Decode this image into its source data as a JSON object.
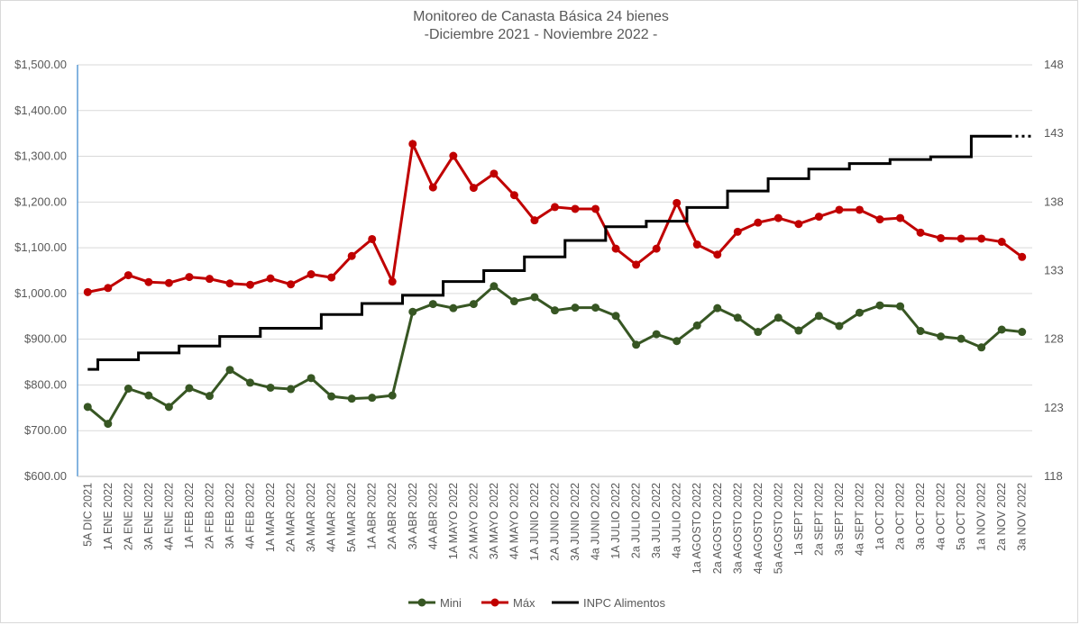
{
  "chart_data": {
    "type": "line",
    "title": "Monitoreo de Canasta Básica 24 bienes",
    "subtitle": "-Diciembre 2021 - Noviembre 2022 -",
    "ylim": [
      600,
      1500
    ],
    "y2lim": [
      118,
      148
    ],
    "y_ticks": [
      "$600.00",
      "$700.00",
      "$800.00",
      "$900.00",
      "$1,000.00",
      "$1,100.00",
      "$1,200.00",
      "$1,300.00",
      "$1,400.00",
      "$1,500.00"
    ],
    "y2_ticks": [
      "118",
      "123",
      "128",
      "133",
      "138",
      "143",
      "148"
    ],
    "grid": "horizontal",
    "legend_position": "bottom",
    "categories": [
      "5A DIC 2021",
      "1A ENE 2022",
      "2A ENE 2022",
      "3A ENE 2022",
      "4A ENE 2022",
      "1A FEB 2022",
      "2A FEB 2022",
      "3A FEB 2022",
      "4A FEB 2022",
      "1A MAR 2022",
      "2A MAR 2022",
      "3A MAR 2022",
      "4A MAR 2022",
      "5A MAR 2022",
      "1A ABR 2022",
      "2A ABR 2022",
      "3A ABR 2022",
      "4A ABR 2022",
      "1A MAYO 2022",
      "2A MAYO 2022",
      "3A MAYO 2022",
      "4A MAYO 2022",
      "1A JUNIO 2022",
      "2A JUNIO 2022",
      "3A JUNIO 2022",
      "4a JUNIO 2022",
      "1A JULIO 2022",
      "2a JULIO 2022",
      "3a JULIO 2022",
      "4a JULIO 2022",
      "1a AGOSTO 2022",
      "2a AGOSTO 2022",
      "3a AGOSTO 2022",
      "4a AGOSTO 2022",
      "5a AGOSTO 2022",
      "1a SEPT 2022",
      "2a SEPT 2022",
      "3a SEPT 2022",
      "4a SEPT 2022",
      "1a OCT 2022",
      "2a OCT 2022",
      "3a OCT 2022",
      "4a OCT 2022",
      "5a OCT 2022",
      "1a NOV 2022",
      "2a NOV 2022",
      "3a NOV 2022"
    ],
    "series": [
      {
        "name": "Mini",
        "axis": "left",
        "color": "#375623",
        "values": [
          752,
          715,
          792,
          777,
          752,
          793,
          776,
          833,
          805,
          794,
          791,
          815,
          775,
          770,
          772,
          777,
          960,
          977,
          968,
          977,
          1016,
          983,
          992,
          963,
          969,
          969,
          951,
          888,
          911,
          896,
          930,
          968,
          947,
          916,
          947,
          919,
          951,
          929,
          958,
          974,
          972,
          918,
          906,
          901,
          882,
          921,
          916
        ]
      },
      {
        "name": "Máx",
        "axis": "left",
        "color": "#c00000",
        "values": [
          1003,
          1012,
          1040,
          1025,
          1023,
          1036,
          1032,
          1022,
          1019,
          1033,
          1020,
          1042,
          1035,
          1082,
          1119,
          1026,
          1327,
          1232,
          1301,
          1231,
          1262,
          1215,
          1160,
          1189,
          1185,
          1185,
          1098,
          1063,
          1098,
          1198,
          1107,
          1085,
          1135,
          1155,
          1165,
          1152,
          1168,
          1183,
          1183,
          1162,
          1165,
          1133,
          1121,
          1120,
          1120,
          1113,
          1080
        ]
      },
      {
        "name": "INPC Alimentos",
        "axis": "right",
        "color": "#000000",
        "style": "step",
        "values": [
          125.8,
          126.5,
          126.5,
          127.0,
          127.0,
          127.5,
          127.5,
          128.2,
          128.2,
          128.8,
          128.8,
          128.8,
          129.8,
          129.8,
          130.6,
          130.6,
          131.2,
          131.2,
          132.2,
          132.2,
          133.0,
          133.0,
          134.0,
          134.0,
          135.2,
          135.2,
          136.2,
          136.2,
          136.6,
          136.6,
          137.6,
          137.6,
          138.8,
          138.8,
          139.7,
          139.7,
          140.4,
          140.4,
          140.8,
          140.8,
          141.1,
          141.1,
          141.3,
          141.3,
          142.8,
          142.8,
          null
        ]
      }
    ]
  }
}
